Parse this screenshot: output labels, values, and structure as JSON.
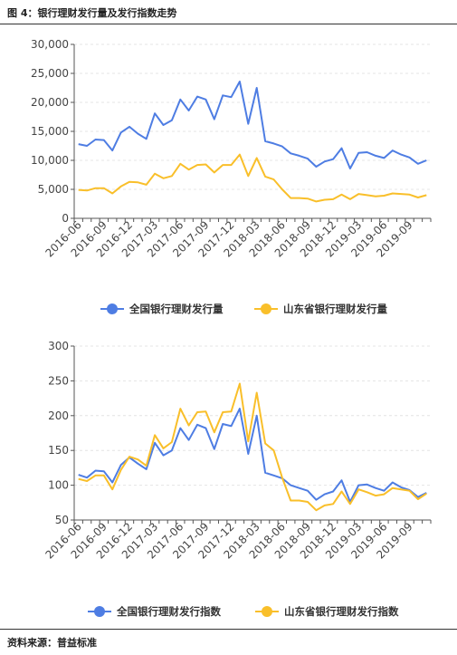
{
  "figure_title": "图 4：银行理财发行量及发行指数走势",
  "source": "资料来源：普益标准",
  "chart_data": [
    {
      "type": "line",
      "ylim": [
        0,
        30000
      ],
      "yticks": [
        "0",
        "5,000",
        "10,000",
        "15,000",
        "20,000",
        "25,000",
        "30,000"
      ],
      "xticks": [
        "2016-06",
        "2016-09",
        "2016-12",
        "2017-03",
        "2017-06",
        "2017-09",
        "2017-12",
        "2018-03",
        "2018-06",
        "2018-09",
        "2018-12",
        "2019-03",
        "2019-06",
        "2019-09"
      ],
      "legend_placement": "bottom",
      "series": [
        {
          "name": "全国银行理财发行量",
          "color": "#4e7de3",
          "values": [
            12800,
            12500,
            13600,
            13500,
            11700,
            14800,
            15800,
            14600,
            13700,
            18100,
            16100,
            16900,
            20500,
            18600,
            21000,
            20500,
            17100,
            21200,
            20900,
            23600,
            16300,
            22500,
            13300,
            12900,
            12400,
            11200,
            10800,
            10300,
            8900,
            9800,
            10200,
            12100,
            8600,
            11300,
            11400,
            10800,
            10400,
            11700,
            11000,
            10500,
            9400,
            10000
          ]
        },
        {
          "name": "山东省银行理财发行量",
          "color": "#f9bf2a",
          "values": [
            4900,
            4800,
            5200,
            5200,
            4300,
            5500,
            6300,
            6200,
            5800,
            7700,
            6900,
            7300,
            9400,
            8400,
            9200,
            9300,
            7900,
            9200,
            9200,
            11000,
            7300,
            10400,
            7200,
            6700,
            5000,
            3500,
            3500,
            3400,
            2900,
            3200,
            3300,
            4100,
            3300,
            4200,
            4000,
            3800,
            3900,
            4300,
            4200,
            4100,
            3600,
            4000
          ]
        }
      ]
    },
    {
      "type": "line",
      "ylim": [
        50,
        300
      ],
      "yticks": [
        "50",
        "100",
        "150",
        "200",
        "250",
        "300"
      ],
      "xticks": [
        "2016-06",
        "2016-09",
        "2016-12",
        "2017-03",
        "2017-06",
        "2017-09",
        "2017-12",
        "2018-03",
        "2018-06",
        "2018-09",
        "2018-12",
        "2019-03",
        "2019-06",
        "2019-09"
      ],
      "legend_placement": "bottom",
      "series": [
        {
          "name": "全国银行理财发行指数",
          "color": "#4e7de3",
          "values": [
            115,
            111,
            121,
            120,
            104,
            129,
            140,
            131,
            123,
            161,
            143,
            150,
            182,
            165,
            187,
            182,
            152,
            188,
            185,
            210,
            145,
            200,
            118,
            114,
            110,
            100,
            96,
            92,
            79,
            87,
            91,
            107,
            76,
            100,
            101,
            96,
            92,
            104,
            97,
            93,
            83,
            89
          ]
        },
        {
          "name": "山东省银行理财发行指数",
          "color": "#f9bf2a",
          "values": [
            109,
            106,
            114,
            114,
            94,
            122,
            141,
            137,
            128,
            172,
            153,
            162,
            210,
            186,
            205,
            206,
            176,
            205,
            206,
            246,
            163,
            233,
            160,
            150,
            111,
            78,
            78,
            76,
            64,
            71,
            73,
            91,
            73,
            94,
            90,
            85,
            87,
            96,
            94,
            92,
            80,
            88
          ]
        }
      ]
    }
  ]
}
